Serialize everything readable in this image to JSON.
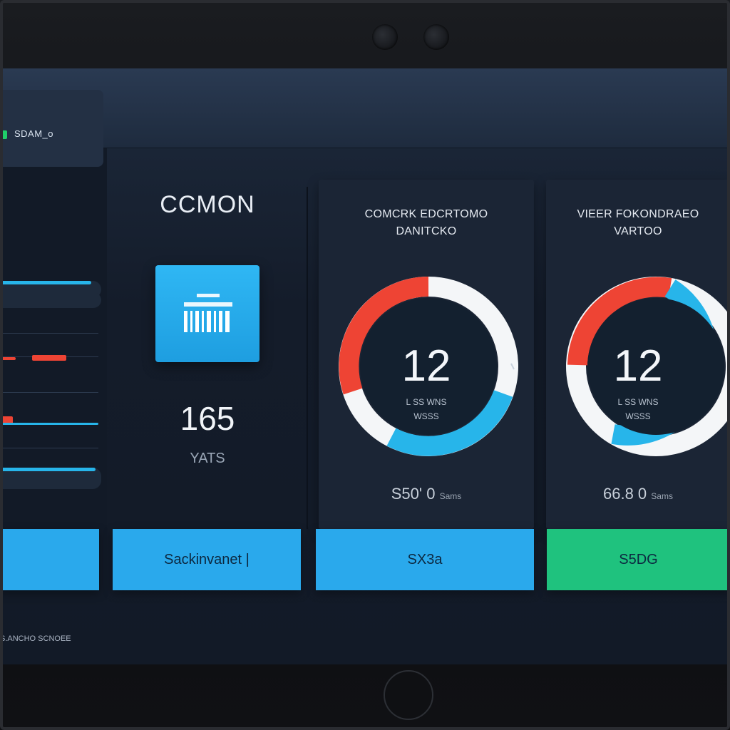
{
  "status_card": {
    "label": "SDAM_o",
    "dot_color": "#1fcf6a"
  },
  "sliders": [
    {
      "fill_fraction": 0.9,
      "color": "#27b5ea"
    },
    {
      "fill_fraction": 0.0,
      "color": "#27b5ea"
    }
  ],
  "colors": {
    "accent_blue": "#2aa9ec",
    "accent_green": "#1fc27e",
    "alert_red": "#ee4434"
  },
  "center": {
    "title": "CCMON",
    "tile_icon": "barcode-calendar-icon",
    "value": "165",
    "unit": "YATS"
  },
  "cards": [
    {
      "title_line1": "COMCRK EDCRTOMO",
      "title_line2": "DANITCKO",
      "gauge_value": "12",
      "gauge_sub1": "L SS WNS",
      "gauge_sub2": "WSSS",
      "foot_value": "S50' 0",
      "foot_small": "Sams"
    },
    {
      "title_line1": "VIEER FOKONDRAEO",
      "title_line2": "VARTOO",
      "gauge_value": "12",
      "gauge_sub1": "L SS WNS",
      "gauge_sub2": "WSSS",
      "foot_value": "66.8 0",
      "foot_small": "Sams"
    }
  ],
  "buttons": {
    "left": "",
    "center": "Sackinvanet |",
    "card1": "SX3a",
    "card2": "S5DG"
  },
  "footer": {
    "text": "S.ANCHO SCNOEE"
  }
}
